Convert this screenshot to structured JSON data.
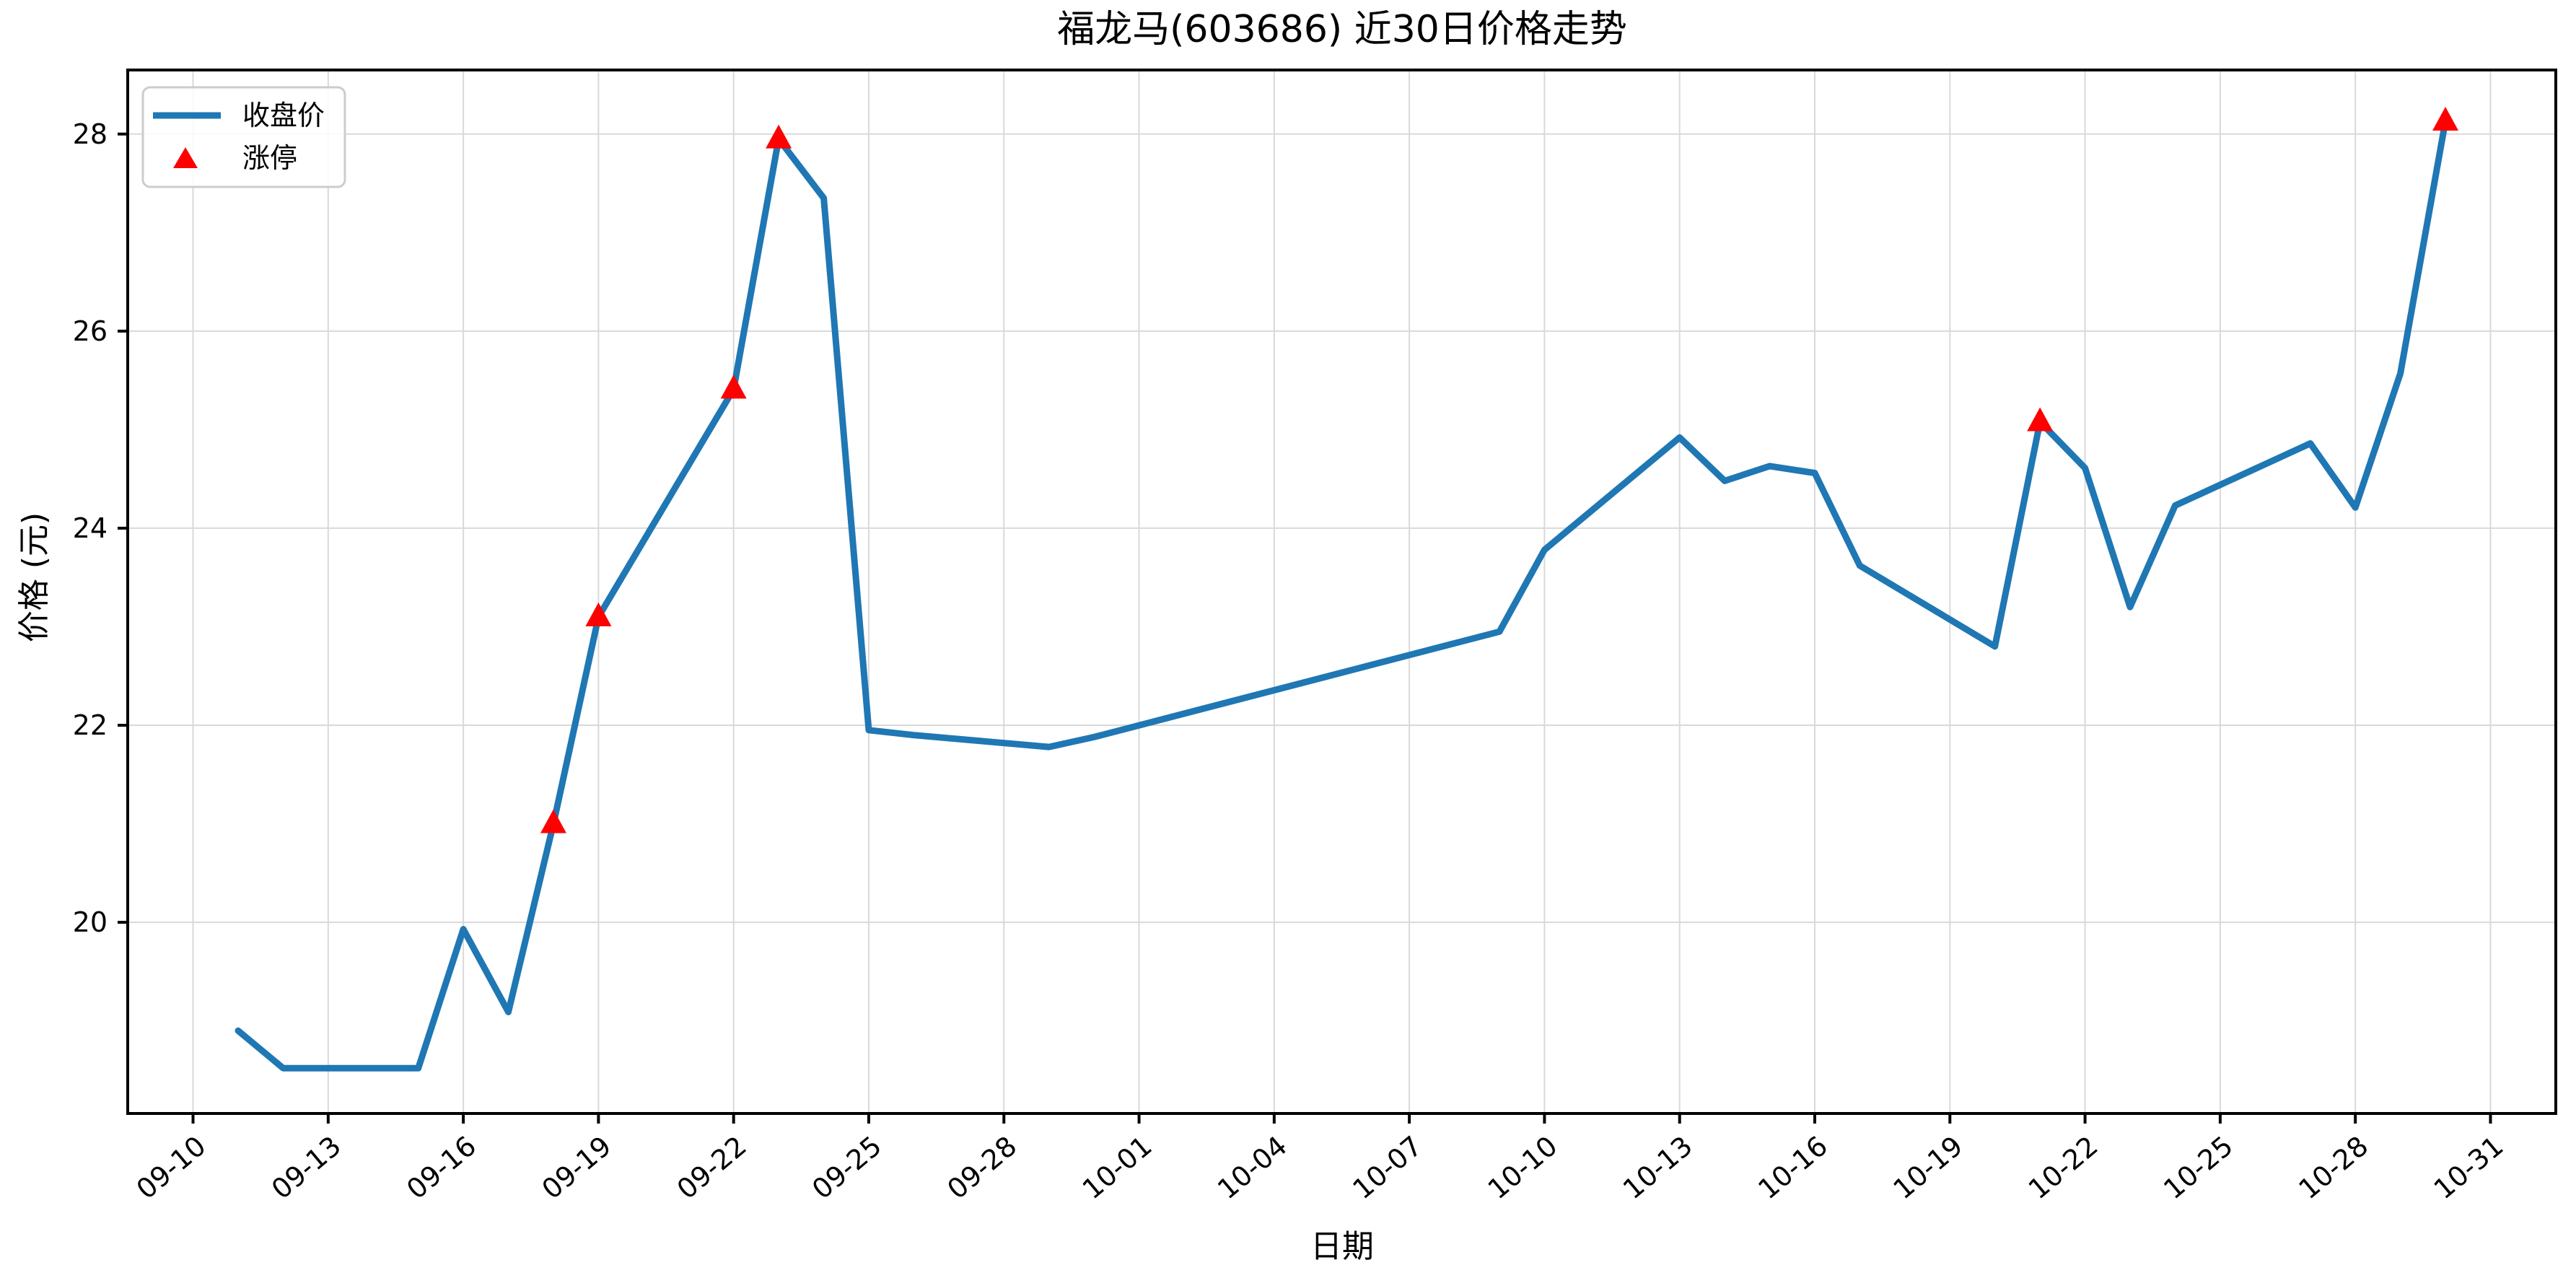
{
  "title": "福龙马(603686) 近30日价格走势",
  "chart_data": {
    "type": "line",
    "title": "福龙马(603686) 近30日价格走势",
    "xlabel": "日期",
    "ylabel": "价格 (元)",
    "legend": [
      {
        "label": "收盘价",
        "marker": "line-sample"
      },
      {
        "label": "涨停",
        "marker": "triangle-sample"
      }
    ],
    "legend_position": "upper-left",
    "grid": true,
    "x_ticks": [
      "09-10",
      "09-13",
      "09-16",
      "09-19",
      "09-22",
      "09-25",
      "09-28",
      "10-01",
      "10-04",
      "10-07",
      "10-10",
      "10-13",
      "10-16",
      "10-19",
      "10-22",
      "10-25",
      "10-28",
      "10-31"
    ],
    "y_ticks": [
      20,
      22,
      24,
      26,
      28
    ],
    "ylim": [
      18.06,
      28.65
    ],
    "xlim_days": [
      -1.45,
      52.45
    ],
    "series": [
      {
        "name": "收盘价",
        "points": [
          {
            "date": "09-11",
            "close": 18.9,
            "limit_up": false
          },
          {
            "date": "09-12",
            "close": 18.52,
            "limit_up": false
          },
          {
            "date": "09-15",
            "close": 18.52,
            "limit_up": false
          },
          {
            "date": "09-16",
            "close": 19.93,
            "limit_up": false
          },
          {
            "date": "09-17",
            "close": 19.09,
            "limit_up": false
          },
          {
            "date": "09-18",
            "close": 21.0,
            "limit_up": true
          },
          {
            "date": "09-19",
            "close": 23.1,
            "limit_up": true
          },
          {
            "date": "09-22",
            "close": 25.41,
            "limit_up": true
          },
          {
            "date": "09-23",
            "close": 27.95,
            "limit_up": true
          },
          {
            "date": "09-24",
            "close": 27.35,
            "limit_up": false
          },
          {
            "date": "09-25",
            "close": 21.95,
            "limit_up": false
          },
          {
            "date": "09-26",
            "close": 21.9,
            "limit_up": false
          },
          {
            "date": "09-29",
            "close": 21.78,
            "limit_up": false
          },
          {
            "date": "09-30",
            "close": 21.88,
            "limit_up": false
          },
          {
            "date": "10-09",
            "close": 22.95,
            "limit_up": false
          },
          {
            "date": "10-10",
            "close": 23.78,
            "limit_up": false
          },
          {
            "date": "10-13",
            "close": 24.92,
            "limit_up": false
          },
          {
            "date": "10-14",
            "close": 24.48,
            "limit_up": false
          },
          {
            "date": "10-15",
            "close": 24.63,
            "limit_up": false
          },
          {
            "date": "10-16",
            "close": 24.56,
            "limit_up": false
          },
          {
            "date": "10-17",
            "close": 23.62,
            "limit_up": false
          },
          {
            "date": "10-20",
            "close": 22.8,
            "limit_up": false
          },
          {
            "date": "10-21",
            "close": 25.08,
            "limit_up": true
          },
          {
            "date": "10-22",
            "close": 24.61,
            "limit_up": false
          },
          {
            "date": "10-23",
            "close": 23.2,
            "limit_up": false
          },
          {
            "date": "10-24",
            "close": 24.23,
            "limit_up": false
          },
          {
            "date": "10-27",
            "close": 24.86,
            "limit_up": false
          },
          {
            "date": "10-28",
            "close": 24.21,
            "limit_up": false
          },
          {
            "date": "10-29",
            "close": 25.57,
            "limit_up": false
          },
          {
            "date": "10-30",
            "close": 28.13,
            "limit_up": true
          }
        ]
      }
    ],
    "colors": {
      "line": "#1f77b4",
      "marker": "#ff0000",
      "grid": "#d9d9d9",
      "frame": "#000000",
      "text": "#000000",
      "legend_border": "#cccccc"
    }
  }
}
